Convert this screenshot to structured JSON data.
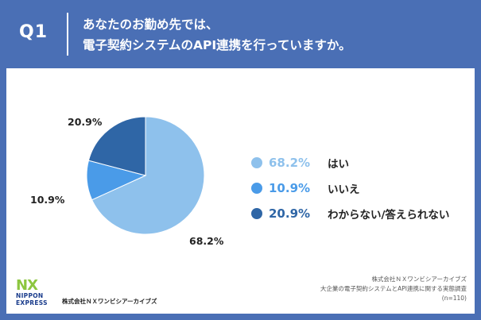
{
  "header": {
    "q_label": "Q1",
    "question_line1": "あなたのお勤め先では、",
    "question_line2": "電子契約システムのAPI連携を行っていますか。"
  },
  "chart_data": {
    "type": "pie",
    "title": "",
    "categories": [
      "はい",
      "いいえ",
      "わからない/答えられない"
    ],
    "values": [
      68.2,
      10.9,
      20.9
    ],
    "colors": [
      "#8ec1ec",
      "#4a9be8",
      "#2f66a6"
    ],
    "slice_labels": [
      "68.2%",
      "10.9%",
      "20.9%"
    ],
    "legend_placement": "right"
  },
  "legend": [
    {
      "pct": "68.2%",
      "label": "はい",
      "color": "#8ec1ec"
    },
    {
      "pct": "10.9%",
      "label": "いいえ",
      "color": "#4a9be8"
    },
    {
      "pct": "20.9%",
      "label": "わからない/答えられない",
      "color": "#2f66a6"
    }
  ],
  "logo": {
    "mark": "NX",
    "line1": "NIPPON",
    "line2": "EXPRESS",
    "company": "株式会社ＮＸワンビシアーカイブズ"
  },
  "source": {
    "line1": "株式会社ＮＸワンビシアーカイブズ",
    "line2": "大企業の電子契約システムとAPI連携に関する実態調査",
    "line3": "(n=110)"
  }
}
